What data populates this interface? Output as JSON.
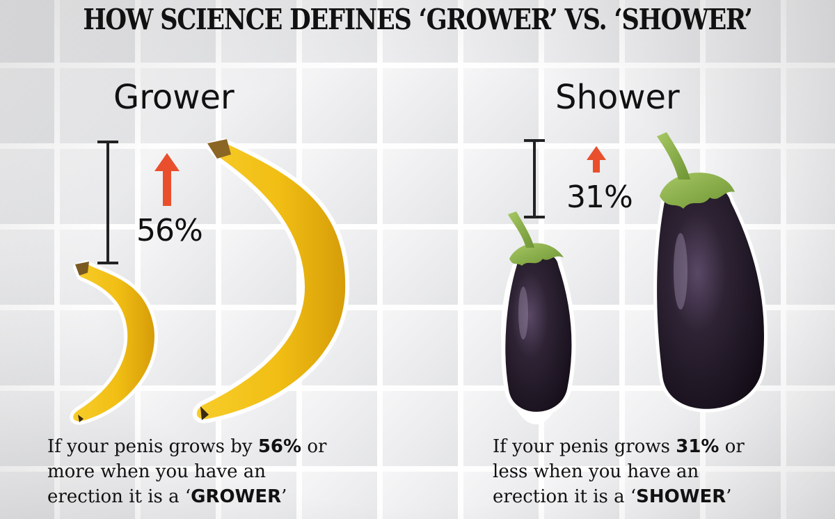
{
  "headline": "HOW SCIENCE DEFINES ‘GROWER’ VS. ‘SHOWER’",
  "grower": {
    "heading": "Grower",
    "percent": "56%",
    "caption": {
      "line1_pre": "If your penis grows by ",
      "line1_bold": "56%",
      "line1_post": " or",
      "line2": "more when you have an",
      "line3_pre": "erection it is a ‘",
      "line3_bold": "GROWER",
      "line3_post": "’"
    }
  },
  "shower": {
    "heading": "Shower",
    "percent": "31%",
    "caption": {
      "line1_pre": "If your penis grows ",
      "line1_bold": "31%",
      "line1_post": " or",
      "line2": "less when you have an",
      "line3_pre": "erection it is a ‘",
      "line3_bold": "SHOWER",
      "line3_post": "’"
    }
  },
  "colors": {
    "arrow": "#e94f2c",
    "banana": "#f3c21a",
    "eggplant": "#2a1f2e",
    "stem": "#8db24a"
  }
}
